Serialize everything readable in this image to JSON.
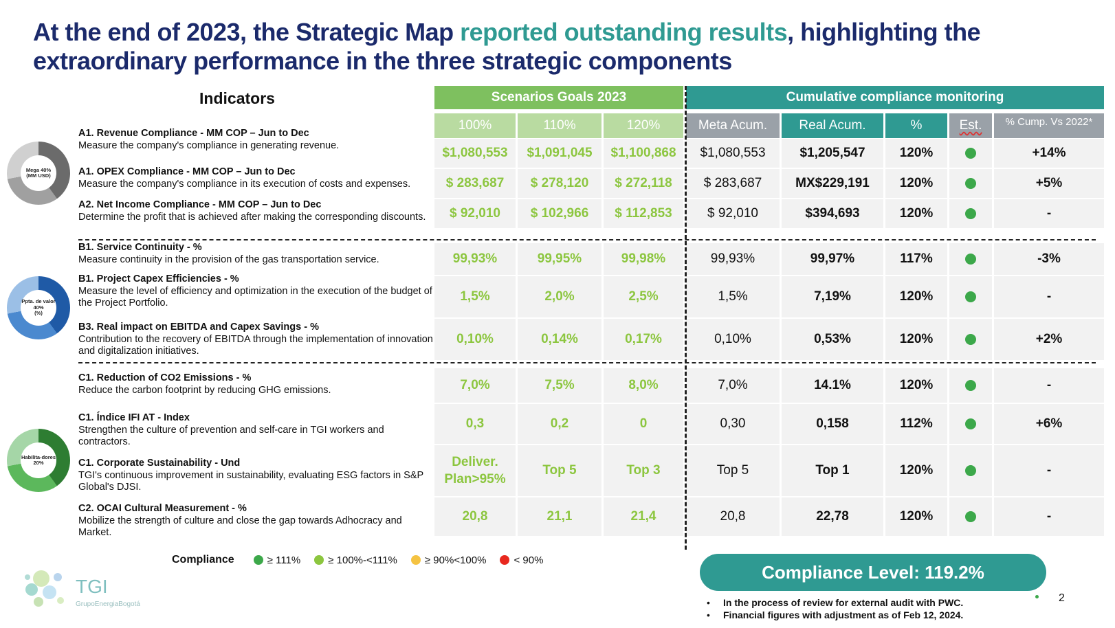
{
  "title": {
    "part1": "At the end of 2023, the Strategic Map ",
    "highlight": "reported outstanding results",
    "part2": ", highlighting the extraordinary performance in the three strategic components"
  },
  "indicators_header": "Indicators",
  "scenarios_header": "Scenarios Goals 2023",
  "cumulative_header": "Cumulative compliance monitoring",
  "columns": {
    "c100": "100%",
    "c110": "110%",
    "c120": "120%",
    "meta": "Meta Acum.",
    "real": "Real Acum.",
    "pct": "%",
    "est": "Est.",
    "vs": "% Cump. Vs 2022*"
  },
  "donuts": {
    "a": {
      "center": "Mega 40%",
      "sub": "(MM USD)",
      "colors": [
        "#6b6b6b",
        "#a0a0a0",
        "#d0d0d0"
      ]
    },
    "b": {
      "center": "Ppta. de valor 40%",
      "sub": "(%)",
      "colors": [
        "#1f5aa6",
        "#4b89cf",
        "#9bbfe6"
      ]
    },
    "c": {
      "center": "Habilita-dores 20%",
      "sub": "",
      "colors": [
        "#2e7d32",
        "#5cb85c",
        "#a5d6a7"
      ]
    }
  },
  "rows": [
    {
      "name": "A1. Revenue Compliance - MM COP – Jun to Dec",
      "desc": "Measure the company's compliance in generating revenue.",
      "s100": "$1,080,553",
      "s110": "$1,091,045",
      "s120": "$1,100,868",
      "meta": "$1,080,553",
      "real": "$1,205,547",
      "pct": "120%",
      "vs": "+14%"
    },
    {
      "name": "A1. OPEX Compliance - MM COP – Jun to Dec",
      "desc": "Measure the company's compliance in its execution of costs and expenses.",
      "s100": "$ 283,687",
      "s110": "$ 278,120",
      "s120": "$ 272,118",
      "meta": "$ 283,687",
      "real": "MX$229,191",
      "pct": "120%",
      "vs": "+5%"
    },
    {
      "name": "A2. Net Income Compliance - MM COP – Jun to Dec",
      "desc": "Determine the profit that is achieved after making the corresponding discounts.",
      "s100": "$ 92,010",
      "s110": "$ 102,966",
      "s120": "$ 112,853",
      "meta": "$ 92,010",
      "real": "$394,693",
      "pct": "120%",
      "vs": "-"
    },
    {
      "name": "B1. Service Continuity - %",
      "desc": "Measure continuity in the provision of the gas transportation service.",
      "s100": "99,93%",
      "s110": "99,95%",
      "s120": "99,98%",
      "meta": "99,93%",
      "real": "99,97%",
      "pct": "117%",
      "vs": "-3%"
    },
    {
      "name": "B1. Project Capex Efficiencies - %",
      "desc": "Measure the level of efficiency and optimization in the execution of the budget of the Project Portfolio.",
      "s100": "1,5%",
      "s110": "2,0%",
      "s120": "2,5%",
      "meta": "1,5%",
      "real": "7,19%",
      "pct": "120%",
      "vs": "-"
    },
    {
      "name": "B3. Real impact on EBITDA and Capex Savings - %",
      "desc": "Contribution to the recovery of EBITDA through the implementation of innovation and digitalization initiatives.",
      "s100": "0,10%",
      "s110": "0,14%",
      "s120": "0,17%",
      "meta": "0,10%",
      "real": "0,53%",
      "pct": "120%",
      "vs": "+2%"
    },
    {
      "name": "C1. Reduction of CO2 Emissions - %",
      "desc": "Reduce the carbon footprint by reducing GHG emissions.",
      "s100": "7,0%",
      "s110": "7,5%",
      "s120": "8,0%",
      "meta": "7,0%",
      "real": "14.1%",
      "pct": "120%",
      "vs": "-"
    },
    {
      "name": "C1. Índice IFI AT - Index",
      "desc": "Strengthen the culture of prevention and self-care in TGI workers and contractors.",
      "s100": "0,3",
      "s110": "0,2",
      "s120": "0",
      "meta": "0,30",
      "real": "0,158",
      "pct": "112%",
      "vs": "+6%"
    },
    {
      "name": "C1. Corporate Sustainability - Und",
      "desc": "TGI's continuous improvement in sustainability, evaluating ESG factors in S&P Global's DJSI.",
      "s100": "Deliver. Plan>95%",
      "s110": "Top 5",
      "s120": "Top 3",
      "meta": "Top 5",
      "real": "Top 1",
      "pct": "120%",
      "vs": "-"
    },
    {
      "name": "C2. OCAI Cultural Measurement - %",
      "desc": "Mobilize the strength of culture and close the gap towards Adhocracy and Market.",
      "s100": "20,8",
      "s110": "21,1",
      "s120": "21,4",
      "meta": "20,8",
      "real": "22,78",
      "pct": "120%",
      "vs": "-"
    }
  ],
  "status_color": "#3ca84a",
  "legend": {
    "label": "Compliance",
    "items": [
      {
        "text": "≥ 111%",
        "color": "#3ca84a"
      },
      {
        "text": "≥ 100%-<111%",
        "color": "#8cc63f"
      },
      {
        "text": "≥ 90%<100%",
        "color": "#f5c342"
      },
      {
        "text": "< 90%",
        "color": "#e8281e"
      }
    ]
  },
  "compliance_level": "Compliance Level: 119.2%",
  "notes": [
    "In the process of review for external audit with PWC.",
    "Financial figures with adjustment as of Feb 12, 2024."
  ],
  "page_number": "2",
  "logo": {
    "name": "TGI",
    "sub": "GrupoEnergiaBogotá"
  }
}
